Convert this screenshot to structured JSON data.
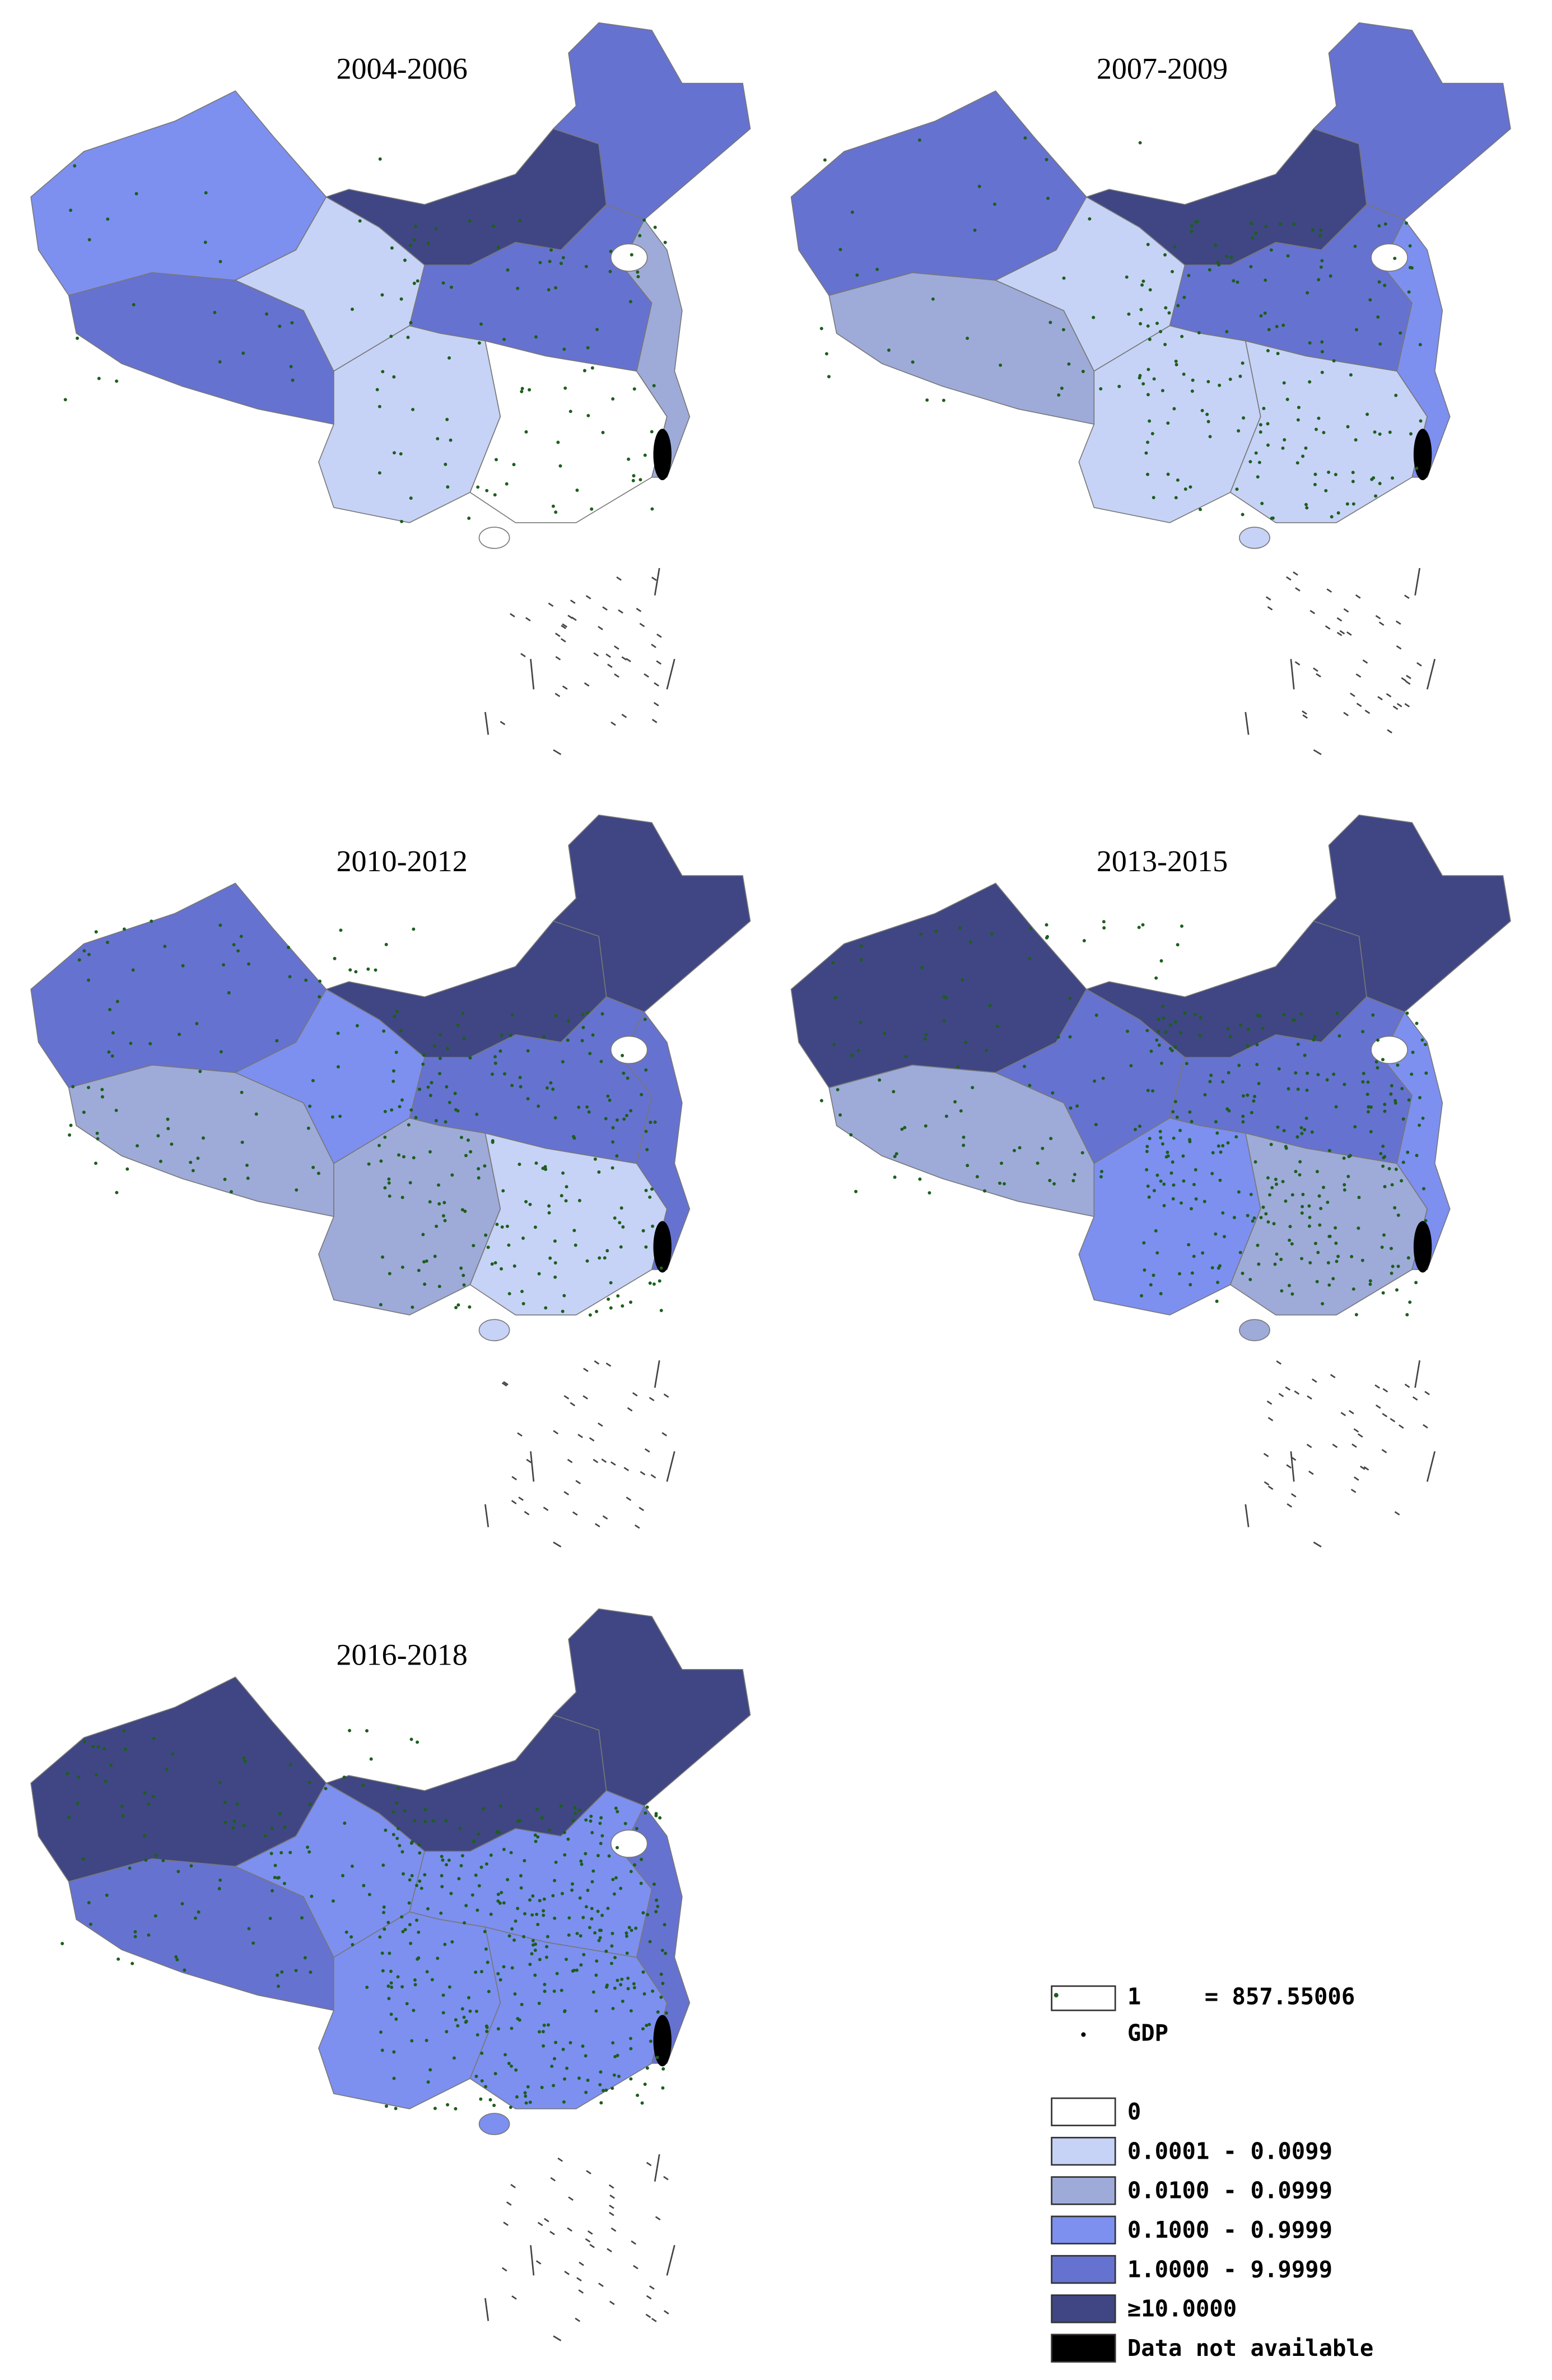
{
  "panels": [
    {
      "title": "2004-2006"
    },
    {
      "title": "2007-2009"
    },
    {
      "title": "2010-2012"
    },
    {
      "title": "2013-2015"
    },
    {
      "title": "2016-2018"
    }
  ],
  "legend": {
    "symbol": {
      "count": "1",
      "equals": "= 857.55006",
      "name": "GDP"
    },
    "items": [
      {
        "label": "0",
        "color": "#ffffff"
      },
      {
        "label": "0.0001 - 0.0099",
        "color": "#c6d3f6"
      },
      {
        "label": "0.0100 - 0.0999",
        "color": "#9eabd9"
      },
      {
        "label": "0.1000 - 0.9999",
        "color": "#7d90f0"
      },
      {
        "label": "1.0000 - 9.9999",
        "color": "#6672d0"
      },
      {
        "label": "≥10.0000",
        "color": "#3f4683"
      },
      {
        "label": "Data not available",
        "color": "#000000"
      }
    ]
  }
}
